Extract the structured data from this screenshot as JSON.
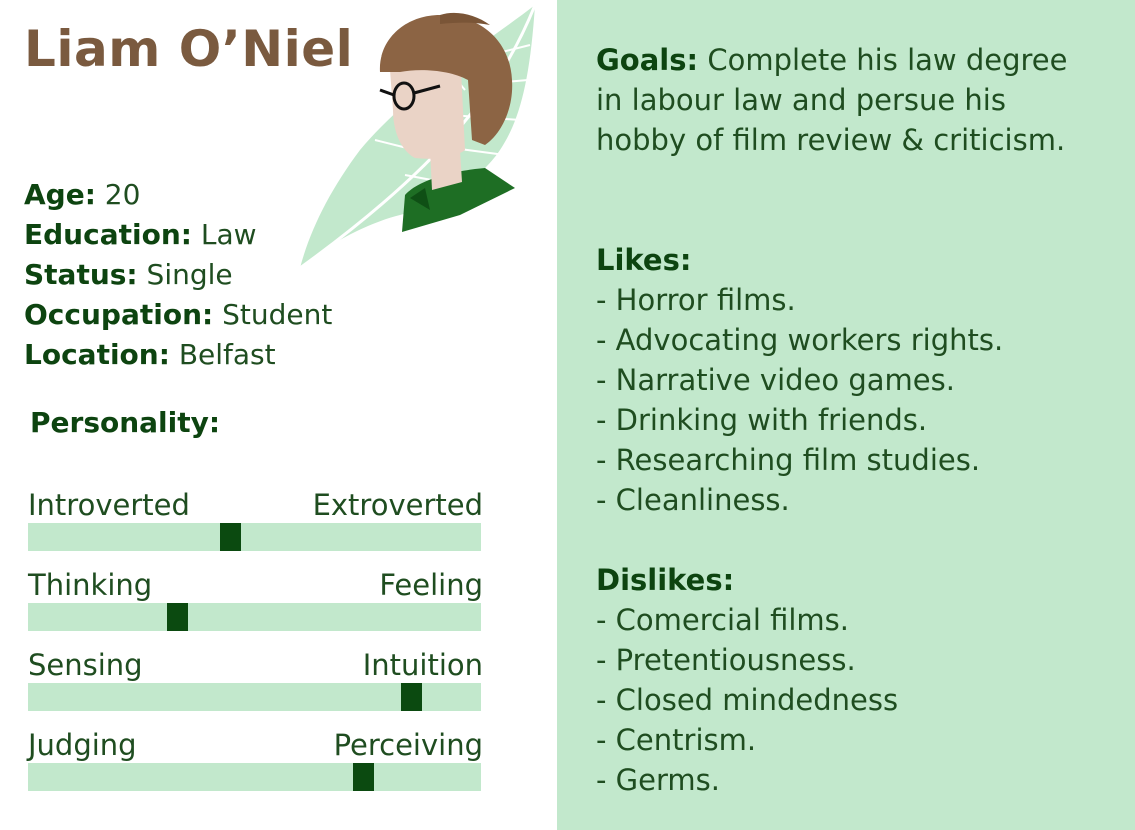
{
  "persona": {
    "name": "Liam O’Niel"
  },
  "details": [
    {
      "label": "Age:",
      "value": " 20"
    },
    {
      "label": "Education:",
      "value": " Law"
    },
    {
      "label": "Status:",
      "value": " Single"
    },
    {
      "label": "Occupation:",
      "value": " Student"
    },
    {
      "label": "Location:",
      "value": " Belfast"
    }
  ],
  "personality": {
    "title": "Personality:",
    "traits": [
      {
        "left": "Introverted",
        "right": "Extroverted",
        "level": 0.445
      },
      {
        "left": "Thinking",
        "right": "Feeling",
        "level": 0.33
      },
      {
        "left": "Sensing",
        "right": "Intuition",
        "level": 0.845
      },
      {
        "left": "Judging",
        "right": "Perceiving",
        "level": 0.74
      }
    ]
  },
  "goals": {
    "label": "Goals:",
    "text_lines": [
      " Complete his law degree",
      "in labour law and persue his",
      "hobby of film review & criticism."
    ]
  },
  "likes": {
    "title": "Likes:",
    "items": [
      "- Horror films.",
      "- Advocating workers rights.",
      "- Narrative video games.",
      "- Drinking with friends.",
      "- Researching film studies.",
      "- Cleanliness."
    ]
  },
  "dislikes": {
    "title": "Dislikes:",
    "items": [
      "- Comercial films.",
      "- Pretentiousness.",
      "- Closed mindedness",
      "- Centrism.",
      "- Germs."
    ]
  },
  "colors": {
    "accent_green": "#0b4a10",
    "panel_green": "#c2e8cc",
    "name_brown": "#7a5a3f"
  }
}
